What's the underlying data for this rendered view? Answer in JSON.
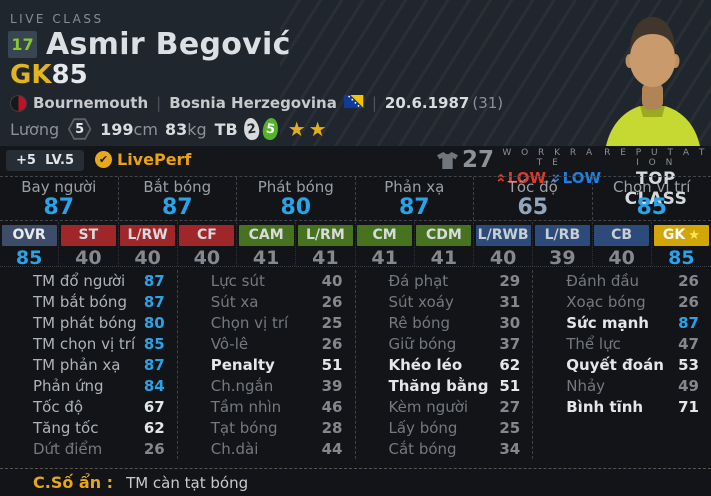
{
  "header": {
    "live_class": "LIVE CLASS",
    "season_badge": "17",
    "player_name": "Asmir Begović",
    "position": "GK",
    "overall": "85",
    "club": "Bournemouth",
    "separator": "|",
    "nation": "Bosnia Herzegovina",
    "birthdate": "20.6.1987",
    "age": "(31)",
    "salary_label": "Lương",
    "salary_value": "5",
    "height_value": "199",
    "height_unit": "cm",
    "weight_value": "83",
    "weight_unit": "kg",
    "foot_label": "TB",
    "weak_foot": "2",
    "strong_foot": "5",
    "stars": "★★"
  },
  "level_strip": {
    "enhance": "+5",
    "level": "LV.5",
    "liveperf_label": "LivePerf",
    "owned_count": "27",
    "workrate_title": "W O R K R A T E",
    "workrate_attack": "LOW",
    "workrate_defense": "LOW",
    "reputation_title": "R E P U T A T I O N",
    "reputation_value": "TOP CLASS"
  },
  "icons": {
    "check": "✔",
    "star": "★",
    "season_badge": "number-17-badge",
    "club_crest": "bournemouth-crest",
    "nation_flag": "bosnia-herzegovina-flag",
    "salary": "hexagon-badge",
    "weak_foot": "left-foot-badge",
    "strong_foot": "right-foot-badge",
    "owned": "jersey-icon",
    "workrate_attack": "double-chevron-up",
    "workrate_defense": "double-chevron-down"
  },
  "top_stats": [
    {
      "label": "Bay người",
      "value": "87",
      "tier": "high"
    },
    {
      "label": "Bắt bóng",
      "value": "87",
      "tier": "high"
    },
    {
      "label": "Phát bóng",
      "value": "80",
      "tier": "high"
    },
    {
      "label": "Phản xạ",
      "value": "87",
      "tier": "high"
    },
    {
      "label": "Tốc độ",
      "value": "65",
      "tier": "midtop"
    },
    {
      "label": "Chọn vị trí",
      "value": "85",
      "tier": "high"
    }
  ],
  "positions": [
    {
      "label": "OVR",
      "value": "85",
      "group": "ovr",
      "tier": "high",
      "star": false
    },
    {
      "label": "ST",
      "value": "40",
      "group": "att",
      "tier": "low",
      "star": false
    },
    {
      "label": "L/RW",
      "value": "40",
      "group": "att",
      "tier": "low",
      "star": false
    },
    {
      "label": "CF",
      "value": "40",
      "group": "att",
      "tier": "low",
      "star": false
    },
    {
      "label": "CAM",
      "value": "41",
      "group": "mid",
      "tier": "low",
      "star": false
    },
    {
      "label": "L/RM",
      "value": "41",
      "group": "mid",
      "tier": "low",
      "star": false
    },
    {
      "label": "CM",
      "value": "41",
      "group": "mid",
      "tier": "low",
      "star": false
    },
    {
      "label": "CDM",
      "value": "41",
      "group": "mid",
      "tier": "low",
      "star": false
    },
    {
      "label": "L/RWB",
      "value": "40",
      "group": "def",
      "tier": "low",
      "star": false
    },
    {
      "label": "L/RB",
      "value": "39",
      "group": "def",
      "tier": "low",
      "star": false
    },
    {
      "label": "CB",
      "value": "40",
      "group": "def",
      "tier": "low",
      "star": false
    },
    {
      "label": "GK",
      "value": "85",
      "group": "gk",
      "tier": "high",
      "star": true
    }
  ],
  "detail_columns": [
    [
      {
        "label": "TM đổ người",
        "value": "87",
        "tier": "high"
      },
      {
        "label": "TM bắt bóng",
        "value": "87",
        "tier": "high"
      },
      {
        "label": "TM phát bóng",
        "value": "80",
        "tier": "high"
      },
      {
        "label": "TM chọn vị trí",
        "value": "85",
        "tier": "high"
      },
      {
        "label": "TM phản xạ",
        "value": "87",
        "tier": "high"
      },
      {
        "label": "Phản ứng",
        "value": "84",
        "tier": "high"
      },
      {
        "label": "Tốc độ",
        "value": "67",
        "tier": "mid"
      },
      {
        "label": "Tăng tốc",
        "value": "62",
        "tier": "mid"
      },
      {
        "label": "Dứt điểm",
        "value": "26",
        "tier": "low"
      }
    ],
    [
      {
        "label": "Lực sút",
        "value": "40",
        "tier": "low"
      },
      {
        "label": "Sút xa",
        "value": "26",
        "tier": "low"
      },
      {
        "label": "Chọn vị trí",
        "value": "25",
        "tier": "low"
      },
      {
        "label": "Vô-lê",
        "value": "26",
        "tier": "low"
      },
      {
        "label": "Penalty",
        "value": "51",
        "tier": "bold"
      },
      {
        "label": "Ch.ngắn",
        "value": "39",
        "tier": "low"
      },
      {
        "label": "Tầm nhìn",
        "value": "46",
        "tier": "low"
      },
      {
        "label": "Tạt bóng",
        "value": "28",
        "tier": "low"
      },
      {
        "label": "Ch.dài",
        "value": "44",
        "tier": "low"
      }
    ],
    [
      {
        "label": "Đá phạt",
        "value": "29",
        "tier": "low"
      },
      {
        "label": "Sút xoáy",
        "value": "31",
        "tier": "low"
      },
      {
        "label": "Rê bóng",
        "value": "30",
        "tier": "low"
      },
      {
        "label": "Giữ bóng",
        "value": "37",
        "tier": "low"
      },
      {
        "label": "Khéo léo",
        "value": "62",
        "tier": "bold"
      },
      {
        "label": "Thăng bằng",
        "value": "51",
        "tier": "bold"
      },
      {
        "label": "Kèm người",
        "value": "27",
        "tier": "low"
      },
      {
        "label": "Lấy bóng",
        "value": "25",
        "tier": "low"
      },
      {
        "label": "Cắt bóng",
        "value": "34",
        "tier": "low"
      }
    ],
    [
      {
        "label": "Đánh đầu",
        "value": "26",
        "tier": "low"
      },
      {
        "label": "Xoạc bóng",
        "value": "26",
        "tier": "low"
      },
      {
        "label": "Sức mạnh",
        "value": "87",
        "tier": "boldhigh"
      },
      {
        "label": "Thể lực",
        "value": "47",
        "tier": "low"
      },
      {
        "label": "Quyết đoán",
        "value": "53",
        "tier": "bold"
      },
      {
        "label": "Nhảy",
        "value": "49",
        "tier": "low"
      },
      {
        "label": "Bình tĩnh",
        "value": "71",
        "tier": "bold"
      }
    ]
  ],
  "footer": {
    "hidden_label": "C.Số ẩn :",
    "hidden_value": "TM càn tạt bóng"
  },
  "colors": {
    "accent_blue": "#2aa3e8",
    "gold": "#e2ae19",
    "season_green": "#85c932",
    "workrate_red": "#e5362b",
    "workrate_blue": "#1f7fe8",
    "badge_red": "#a02729",
    "badge_green": "#47721f",
    "badge_blue": "#2d4b7a",
    "badge_gk_gold": "#d3a607",
    "header_bg": "#20262d",
    "body_bg": "#131418"
  }
}
